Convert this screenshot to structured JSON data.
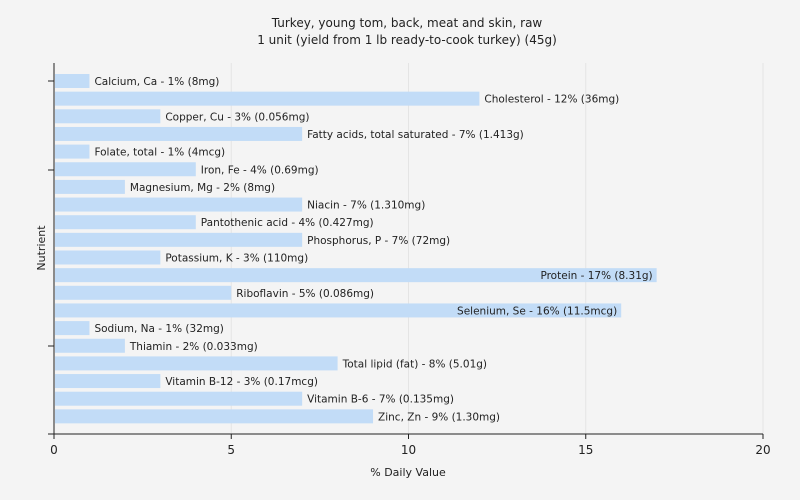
{
  "chart_data": {
    "type": "bar",
    "orientation": "horizontal",
    "title": "Turkey, young tom, back, meat and skin, raw",
    "subtitle": "1 unit (yield from 1 lb ready-to-cook turkey) (45g)",
    "xlabel": "% Daily Value",
    "ylabel": "Nutrient",
    "xlim": [
      0,
      20
    ],
    "xticks": [
      "0",
      "5",
      "10",
      "15",
      "20"
    ],
    "grid": true,
    "bar_color": "#c2dcf7",
    "grid_color": "#e4e4e4",
    "bars": [
      {
        "label": "Calcium, Ca - 1% (8mg)",
        "value": 1
      },
      {
        "label": "Cholesterol - 12% (36mg)",
        "value": 12
      },
      {
        "label": "Copper, Cu - 3% (0.056mg)",
        "value": 3
      },
      {
        "label": "Fatty acids, total saturated - 7% (1.413g)",
        "value": 7
      },
      {
        "label": "Folate, total - 1% (4mcg)",
        "value": 1
      },
      {
        "label": "Iron, Fe - 4% (0.69mg)",
        "value": 4
      },
      {
        "label": "Magnesium, Mg - 2% (8mg)",
        "value": 2
      },
      {
        "label": "Niacin - 7% (1.310mg)",
        "value": 7
      },
      {
        "label": "Pantothenic acid - 4% (0.427mg)",
        "value": 4
      },
      {
        "label": "Phosphorus, P - 7% (72mg)",
        "value": 7
      },
      {
        "label": "Potassium, K - 3% (110mg)",
        "value": 3
      },
      {
        "label": "Protein - 17% (8.31g)",
        "value": 17
      },
      {
        "label": "Riboflavin - 5% (0.086mg)",
        "value": 5
      },
      {
        "label": "Selenium, Se - 16% (11.5mcg)",
        "value": 16
      },
      {
        "label": "Sodium, Na - 1% (32mg)",
        "value": 1
      },
      {
        "label": "Thiamin - 2% (0.033mg)",
        "value": 2
      },
      {
        "label": "Total lipid (fat) - 8% (5.01g)",
        "value": 8
      },
      {
        "label": "Vitamin B-12 - 3% (0.17mcg)",
        "value": 3
      },
      {
        "label": "Vitamin B-6 - 7% (0.135mg)",
        "value": 7
      },
      {
        "label": "Zinc, Zn - 9% (1.30mg)",
        "value": 9
      }
    ]
  }
}
